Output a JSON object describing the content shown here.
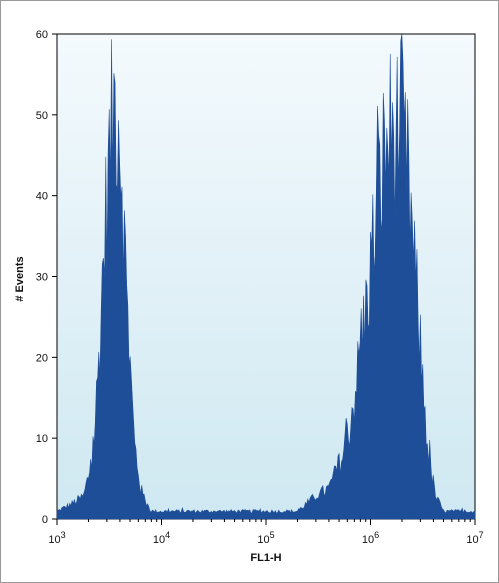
{
  "chart_data": {
    "type": "histogram",
    "title": "",
    "xlabel": "FL1-H",
    "ylabel": "# Events",
    "x_scale": "log",
    "xlim": [
      1000,
      10000000
    ],
    "ylim": [
      0,
      60
    ],
    "x_ticks": [
      {
        "value": 1000,
        "base": "10",
        "exp": "3"
      },
      {
        "value": 10000,
        "base": "10",
        "exp": "4"
      },
      {
        "value": 100000,
        "base": "10",
        "exp": "5"
      },
      {
        "value": 1000000,
        "base": "10",
        "exp": "6"
      },
      {
        "value": 10000000,
        "base": "10",
        "exp": "7"
      }
    ],
    "y_ticks": [
      0,
      10,
      20,
      30,
      40,
      50,
      60
    ],
    "grid": false,
    "legend": "none",
    "colors": {
      "fill": "#1f4e99",
      "background_top": "#f4fafd",
      "background_bottom": "#cfe8f1"
    },
    "series": [
      {
        "x": [
          1000,
          1400,
          1800,
          2200,
          2500,
          2800,
          3100,
          3400,
          3600,
          3900,
          4200,
          4500,
          5000,
          5500,
          6300,
          7200,
          8000,
          9000,
          10000,
          30000,
          100000,
          200000,
          300000,
          400000,
          500000,
          600000,
          700000,
          900000,
          1100000,
          1300000,
          1500000,
          1700000,
          1900000,
          2100000,
          2300000,
          2500000,
          2800000,
          3200000,
          3600000,
          4200000,
          5000000,
          6000000,
          7000000,
          8500000,
          10000000
        ],
        "y": [
          1,
          2,
          3,
          8,
          20,
          35,
          45,
          52,
          55,
          53,
          45,
          33,
          20,
          10,
          4,
          2,
          1,
          1,
          1,
          1,
          1,
          1,
          3,
          4,
          7,
          10,
          16,
          27,
          38,
          46,
          50,
          50,
          51,
          48,
          44,
          37,
          28,
          17,
          8,
          3,
          1,
          1,
          1,
          1,
          1
        ]
      }
    ]
  }
}
